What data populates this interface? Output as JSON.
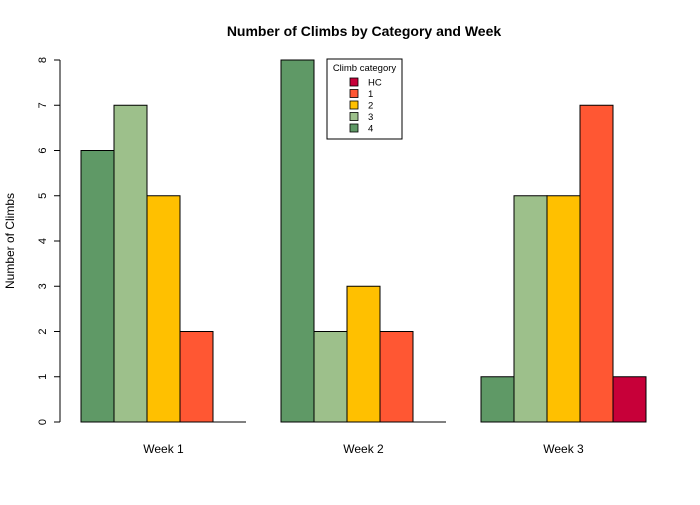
{
  "chart_data": {
    "type": "bar",
    "title": "Number of Climbs by Category and Week",
    "ylabel": "Number of Climbs",
    "xlabel": "",
    "ylim": [
      0,
      8
    ],
    "yticks": [
      0,
      1,
      2,
      3,
      4,
      5,
      6,
      7,
      8
    ],
    "categories": [
      "Week 1",
      "Week 2",
      "Week 3"
    ],
    "series": [
      {
        "name": "4",
        "color": "#5F9966",
        "values": [
          6,
          8,
          1
        ]
      },
      {
        "name": "3",
        "color": "#9DC08B",
        "values": [
          7,
          2,
          5
        ]
      },
      {
        "name": "2",
        "color": "#FFC000",
        "values": [
          5,
          3,
          5
        ]
      },
      {
        "name": "1",
        "color": "#FF5733",
        "values": [
          2,
          2,
          7
        ]
      },
      {
        "name": "HC",
        "color": "#C70039",
        "values": [
          0,
          0,
          1
        ]
      }
    ],
    "legend": {
      "title": "Climb category",
      "placement": "top-center",
      "order": [
        "HC",
        "1",
        "2",
        "3",
        "4"
      ]
    },
    "grid": false
  }
}
